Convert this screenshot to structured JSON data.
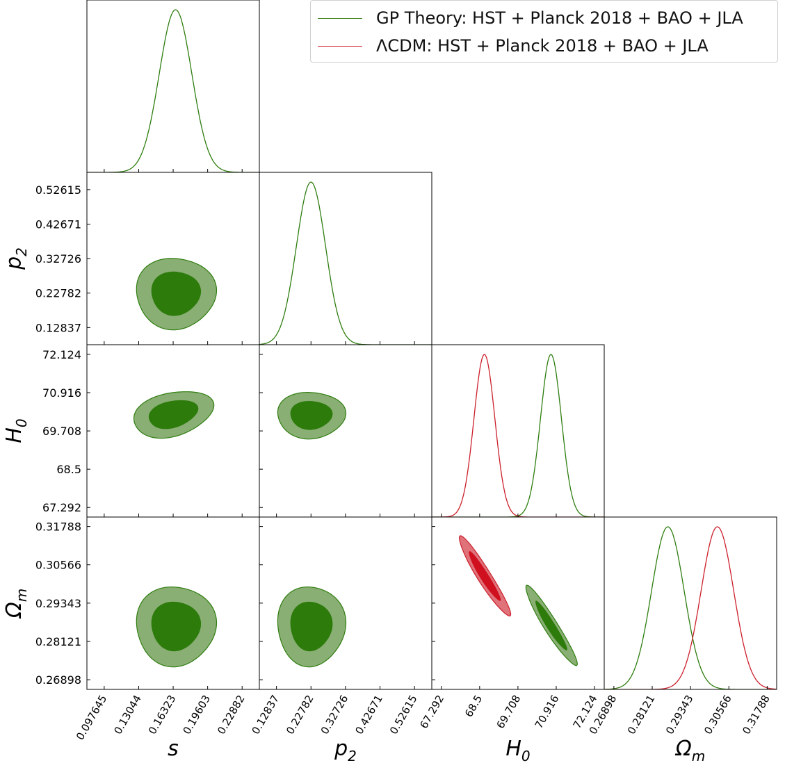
{
  "chart_data": {
    "type": "corner",
    "parameters": [
      {
        "key": "s",
        "label": "s",
        "sub": "",
        "ticks": [
          "0.097645",
          "0.13044",
          "0.16323",
          "0.19603",
          "0.22882"
        ],
        "range": [
          0.0812,
          0.2452
        ]
      },
      {
        "key": "p2",
        "label": "p",
        "sub": "2",
        "ticks": [
          "0.12837",
          "0.22782",
          "0.32726",
          "0.42671",
          "0.52615"
        ],
        "range": [
          0.079,
          0.576
        ]
      },
      {
        "key": "H0",
        "label": "H",
        "sub": "0",
        "ticks": [
          "67.292",
          "68.5",
          "69.708",
          "70.916",
          "72.124"
        ],
        "range": [
          66.99,
          72.43
        ]
      },
      {
        "key": "Om",
        "label": "Ω",
        "sub": "m",
        "ticks": [
          "0.26898",
          "0.28121",
          "0.29343",
          "0.30566",
          "0.31788"
        ],
        "range": [
          0.2659,
          0.3209
        ]
      }
    ],
    "series": [
      {
        "name": "GP Theory: HST + Planck 2018 + BAO + JLA",
        "color": "#2e7d0f",
        "fill_outer": "#8aaf74",
        "fill_inner": "#2c7b0b",
        "marginals": {
          "s": {
            "mean": 0.1655,
            "sigma": 0.0155
          },
          "p2": {
            "mean": 0.2278,
            "sigma": 0.042
          },
          "H0": {
            "mean": 70.75,
            "sigma": 0.33
          },
          "Om": {
            "mean": 0.2862,
            "sigma": 0.0052
          }
        },
        "contours": [
          {
            "x": "s",
            "y": "p2",
            "cx": 0.1655,
            "cy": 0.2278,
            "sx": 0.0155,
            "sy": 0.042,
            "rho": 0.0
          },
          {
            "x": "s",
            "y": "H0",
            "cx": 0.163,
            "cy": 70.24,
            "sx": 0.0155,
            "sy": 0.3,
            "rho": 0.3
          },
          {
            "x": "p2",
            "y": "H0",
            "cx": 0.2278,
            "cy": 70.21,
            "sx": 0.04,
            "sy": 0.3,
            "rho": 0.0
          },
          {
            "x": "s",
            "y": "Om",
            "cx": 0.1655,
            "cy": 0.2862,
            "sx": 0.0155,
            "sy": 0.0052,
            "rho": 0.0
          },
          {
            "x": "p2",
            "y": "Om",
            "cx": 0.2278,
            "cy": 0.2862,
            "sx": 0.04,
            "sy": 0.0052,
            "rho": 0.0
          },
          {
            "x": "H0",
            "y": "Om",
            "cx": 70.75,
            "cy": 0.2862,
            "sx": 0.33,
            "sy": 0.0052,
            "rho": -0.95
          }
        ]
      },
      {
        "name": "ΛCDM: HST + Planck 2018 + BAO + JLA",
        "color": "#cc1f2b",
        "fill_outer": "#e0727a",
        "fill_inner": "#d0101e",
        "marginals": {
          "H0": {
            "mean": 68.65,
            "sigma": 0.33
          },
          "Om": {
            "mean": 0.302,
            "sigma": 0.0052
          }
        },
        "contours": [
          {
            "x": "H0",
            "y": "Om",
            "cx": 68.65,
            "cy": 0.302,
            "sx": 0.33,
            "sy": 0.0052,
            "rho": -0.95
          }
        ]
      }
    ],
    "legend_position": "top-right"
  }
}
